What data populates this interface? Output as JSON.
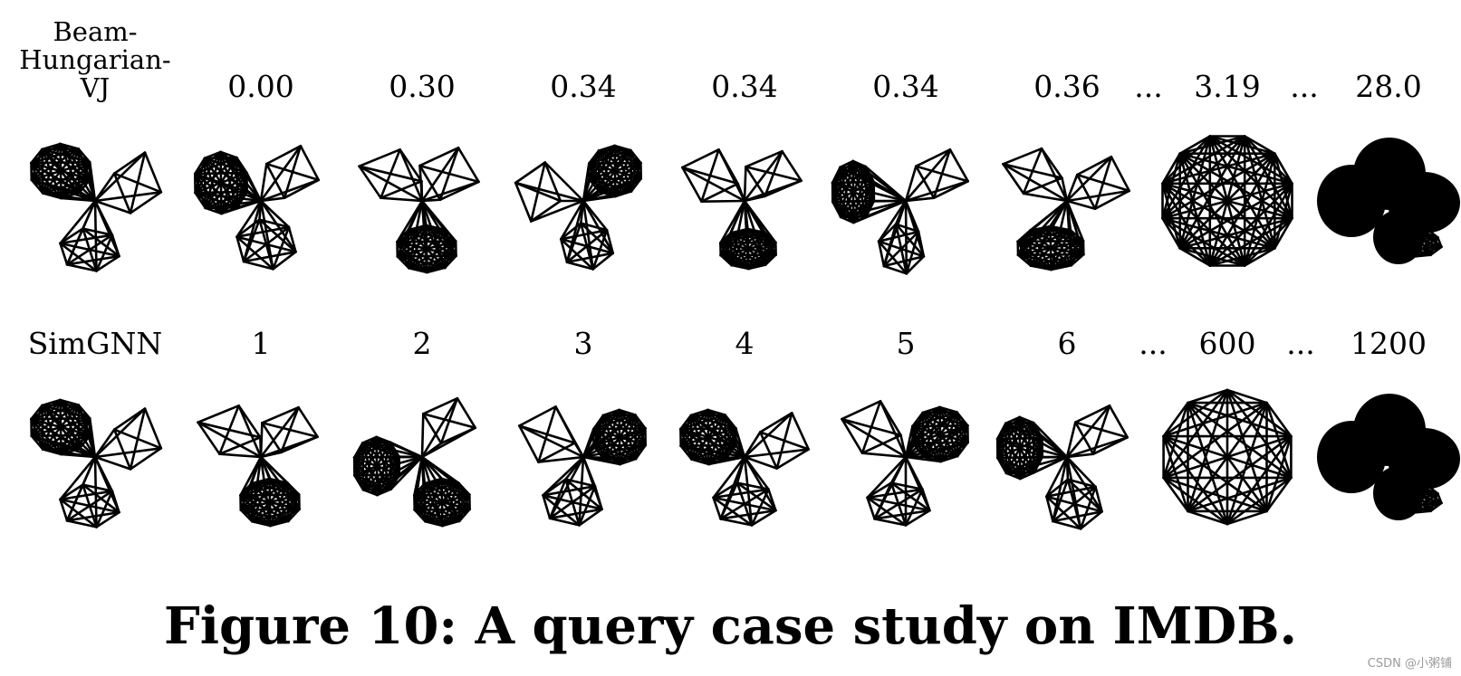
{
  "rows": [
    {
      "method": [
        "Beam-",
        "Hungarian-",
        "VJ"
      ],
      "labels": [
        "0.00",
        "0.30",
        "0.34",
        "0.34",
        "0.34",
        "0.36",
        "...",
        "3.19",
        "...",
        "28.0"
      ]
    },
    {
      "method": [
        "SimGNN"
      ],
      "labels": [
        "1",
        "2",
        "3",
        "4",
        "5",
        "6",
        "...",
        "600",
        "...",
        "1200"
      ]
    }
  ],
  "caption": "Figure 10: A query case study on IMDB.",
  "watermark": "CSDN @小粥铺"
}
